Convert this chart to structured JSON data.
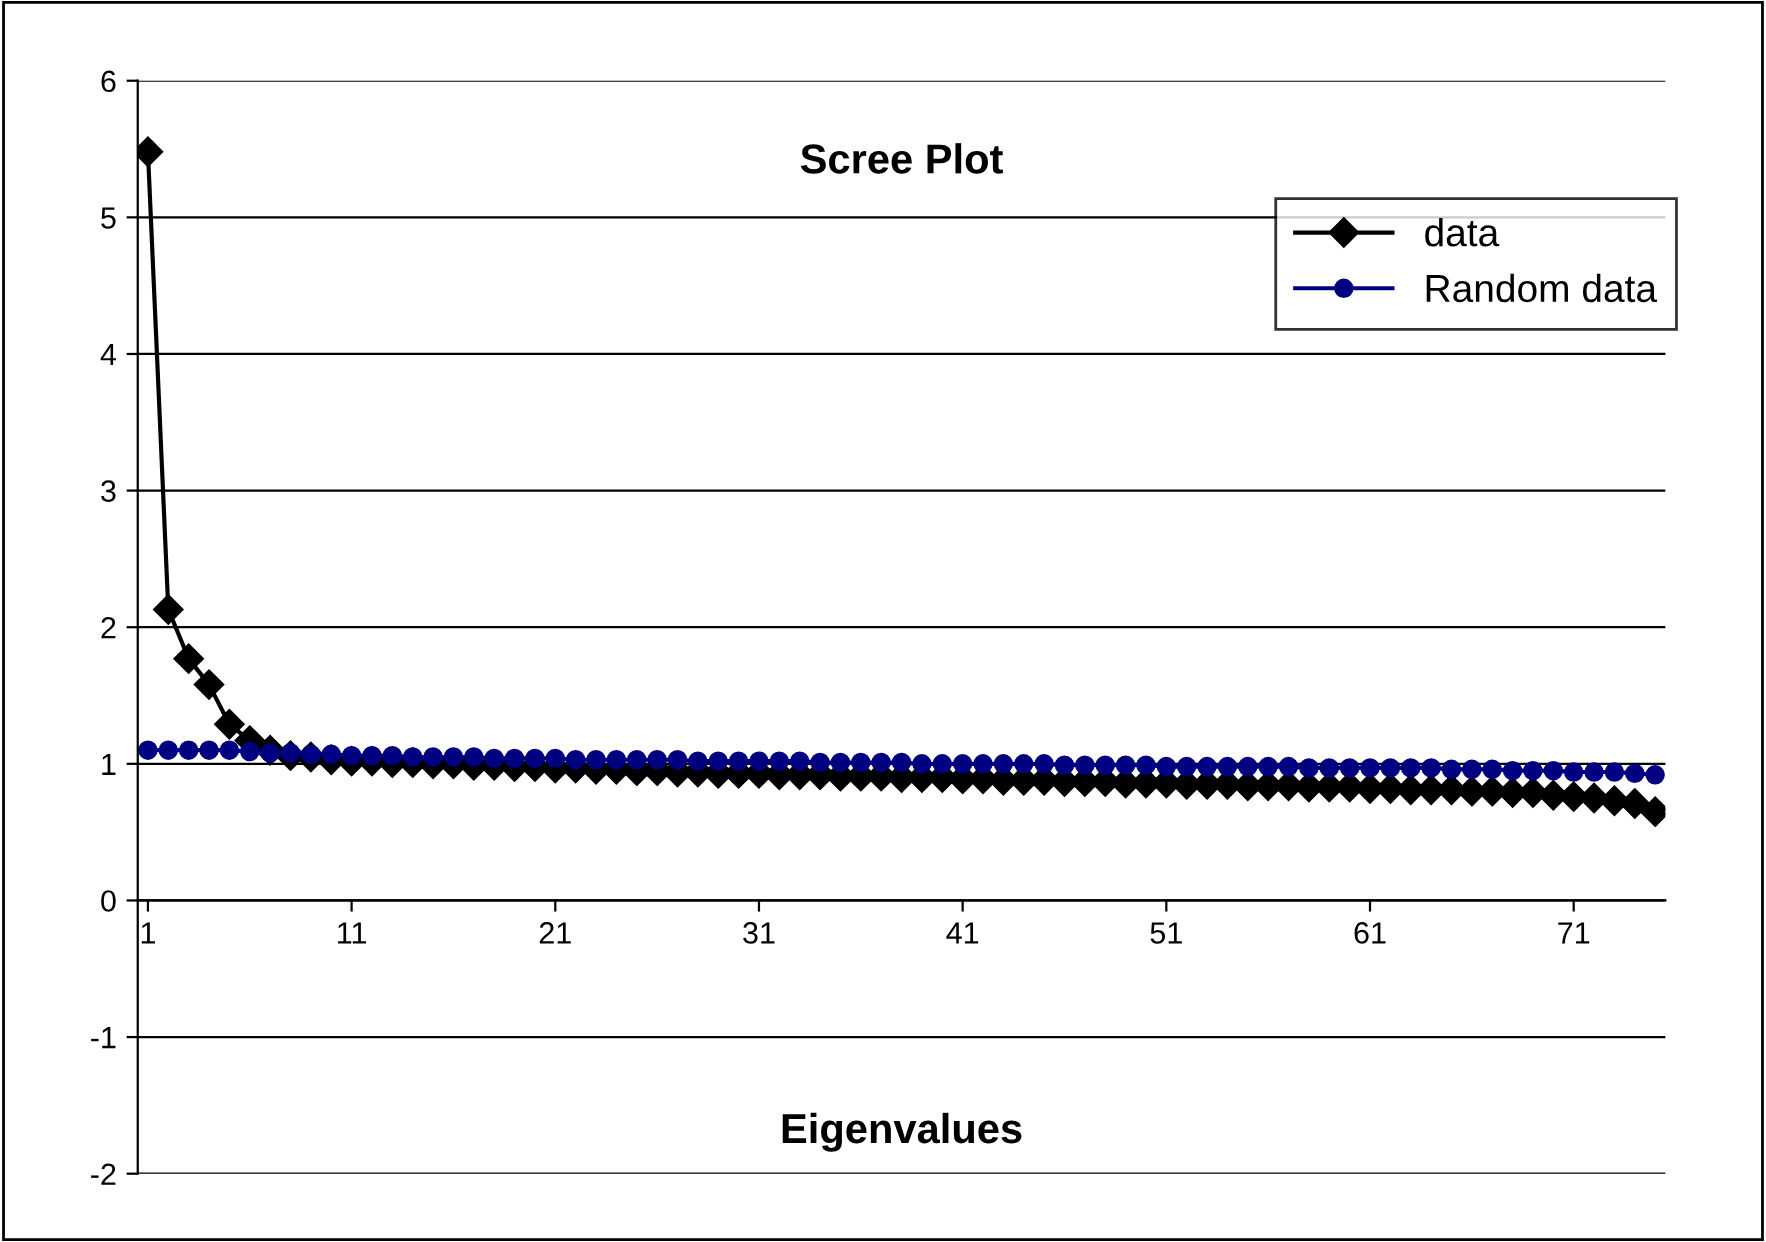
{
  "chart_data": {
    "type": "line",
    "title": "Scree Plot",
    "xlabel": "Eigenvalues",
    "categories": [
      "1",
      null,
      null,
      null,
      null,
      null,
      null,
      null,
      null,
      null,
      "11",
      null,
      null,
      null,
      null,
      null,
      null,
      null,
      null,
      null,
      "21",
      null,
      null,
      null,
      null,
      null,
      null,
      null,
      null,
      null,
      "31",
      null,
      null,
      null,
      null,
      null,
      null,
      null,
      null,
      null,
      "41",
      null,
      null,
      null,
      null,
      null,
      null,
      null,
      null,
      null,
      "51",
      null,
      null,
      null,
      null,
      null,
      null,
      null,
      null,
      null,
      "61",
      null,
      null,
      null,
      null,
      null,
      null,
      null,
      null,
      null,
      "71",
      null,
      null,
      null,
      null
    ],
    "series": [
      {
        "name": "data",
        "color": "#000000",
        "marker": "diamond",
        "values": [
          5.48,
          2.13,
          1.77,
          1.58,
          1.29,
          1.17,
          1.1,
          1.06,
          1.05,
          1.03,
          1.02,
          1.02,
          1.01,
          1.01,
          1.0,
          1.0,
          0.99,
          0.99,
          0.98,
          0.98,
          0.97,
          0.97,
          0.96,
          0.96,
          0.95,
          0.95,
          0.94,
          0.94,
          0.93,
          0.93,
          0.93,
          0.92,
          0.92,
          0.92,
          0.91,
          0.91,
          0.91,
          0.9,
          0.9,
          0.9,
          0.89,
          0.89,
          0.88,
          0.88,
          0.88,
          0.87,
          0.87,
          0.87,
          0.86,
          0.86,
          0.86,
          0.85,
          0.85,
          0.85,
          0.84,
          0.84,
          0.84,
          0.83,
          0.83,
          0.83,
          0.82,
          0.82,
          0.81,
          0.81,
          0.81,
          0.8,
          0.8,
          0.79,
          0.79,
          0.77,
          0.76,
          0.75,
          0.73,
          0.71,
          0.65
        ]
      },
      {
        "name": "Random data",
        "color": "#000080",
        "marker": "circle",
        "values": [
          1.1,
          1.1,
          1.1,
          1.1,
          1.1,
          1.09,
          1.08,
          1.08,
          1.07,
          1.07,
          1.06,
          1.06,
          1.06,
          1.05,
          1.05,
          1.05,
          1.05,
          1.04,
          1.04,
          1.04,
          1.04,
          1.03,
          1.03,
          1.03,
          1.03,
          1.03,
          1.03,
          1.02,
          1.02,
          1.02,
          1.02,
          1.02,
          1.02,
          1.01,
          1.01,
          1.01,
          1.01,
          1.01,
          1.0,
          1.0,
          1.0,
          1.0,
          1.0,
          1.0,
          1.0,
          0.99,
          0.99,
          0.99,
          0.99,
          0.99,
          0.98,
          0.98,
          0.98,
          0.98,
          0.98,
          0.98,
          0.98,
          0.97,
          0.97,
          0.97,
          0.97,
          0.97,
          0.97,
          0.97,
          0.96,
          0.96,
          0.96,
          0.95,
          0.95,
          0.95,
          0.94,
          0.94,
          0.94,
          0.93,
          0.92
        ]
      }
    ],
    "ylim": [
      -2,
      6
    ],
    "yticks": [
      -2,
      -1,
      0,
      1,
      2,
      3,
      4,
      5,
      6
    ],
    "grid": "y",
    "legend": "top right",
    "line_style": "solid"
  }
}
